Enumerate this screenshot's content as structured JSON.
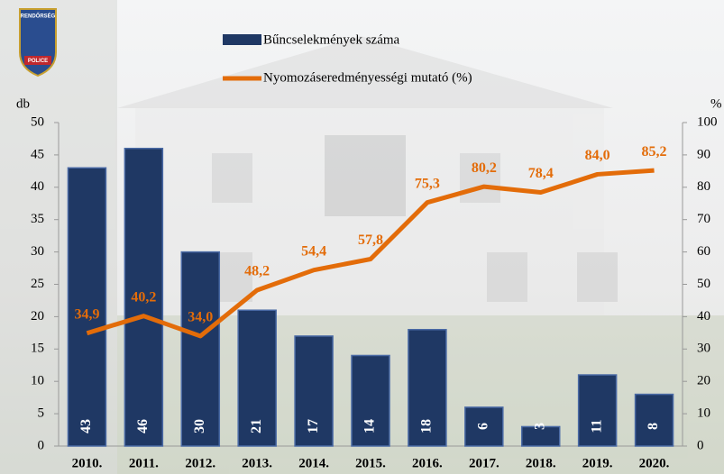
{
  "logo": {
    "top": "RENDŐRSÉG",
    "bottom": "POLICE"
  },
  "chart_data": {
    "type": "combo",
    "y_label": "db",
    "y2_label": "%",
    "categories": [
      "2010.",
      "2011.",
      "2012.",
      "2013.",
      "2014.",
      "2015.",
      "2016.",
      "2017.",
      "2018.",
      "2019.",
      "2020."
    ],
    "series": [
      {
        "name": "Bűncselekmények száma",
        "type": "bar",
        "color": "#1f3864",
        "values": [
          43,
          46,
          30,
          21,
          17,
          14,
          18,
          6,
          3,
          11,
          8
        ]
      },
      {
        "name": "Nyomozáseredményességi mutató (%)",
        "type": "line",
        "axis": "y2",
        "color": "#e36c09",
        "values": [
          34.9,
          40.2,
          34.0,
          48.2,
          54.4,
          57.8,
          75.3,
          80.2,
          78.4,
          84.0,
          85.2
        ],
        "value_labels": [
          "34,9",
          "40,2",
          "34,0",
          "48,2",
          "54,4",
          "57,8",
          "75,3",
          "80,2",
          "78,4",
          "84,0",
          "85,2"
        ]
      }
    ],
    "ylim": [
      0,
      50
    ],
    "yticks": [
      0,
      5,
      10,
      15,
      20,
      25,
      30,
      35,
      40,
      45,
      50
    ],
    "y2lim": [
      0,
      100
    ],
    "y2ticks": [
      0,
      10,
      20,
      30,
      40,
      50,
      60,
      70,
      80,
      90,
      100
    ]
  }
}
